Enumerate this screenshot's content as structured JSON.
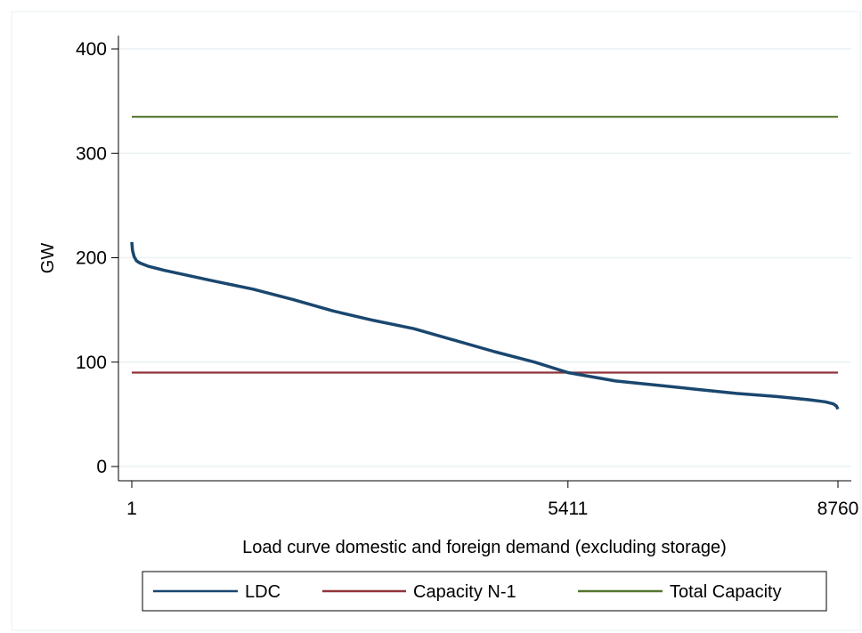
{
  "chart_data": {
    "type": "line",
    "title": "",
    "xlabel": "Load curve domestic and foreign demand (excluding storage)",
    "ylabel": "GW",
    "xlim": [
      1,
      8760
    ],
    "ylim": [
      0,
      400
    ],
    "x_ticks": [
      {
        "value": 1,
        "label": "1"
      },
      {
        "value": 5411,
        "label": "5411"
      },
      {
        "value": 8760,
        "label": "8760"
      }
    ],
    "y_ticks": [
      {
        "value": 0,
        "label": "0"
      },
      {
        "value": 100,
        "label": "100"
      },
      {
        "value": 200,
        "label": "200"
      },
      {
        "value": 300,
        "label": "300"
      },
      {
        "value": 400,
        "label": "400"
      }
    ],
    "grid": "horizontal",
    "legend_position": "bottom",
    "series": [
      {
        "name": "LDC",
        "color": "#1a476f",
        "x": [
          1,
          10,
          30,
          60,
          100,
          200,
          400,
          700,
          1000,
          1500,
          2000,
          2500,
          3000,
          3500,
          4000,
          4500,
          5000,
          5411,
          6000,
          6500,
          7000,
          7500,
          8000,
          8400,
          8600,
          8700,
          8740,
          8760
        ],
        "y": [
          215,
          207,
          201,
          197,
          195,
          192,
          188,
          183,
          178,
          170,
          160,
          149,
          140,
          132,
          121,
          110,
          100,
          90,
          82,
          78,
          74,
          70,
          67,
          64,
          62,
          60,
          58,
          55
        ]
      },
      {
        "name": "Capacity N-1",
        "color": "#90353b",
        "x": [
          1,
          8760
        ],
        "y": [
          90,
          90
        ]
      },
      {
        "name": "Total Capacity",
        "color": "#55752f",
        "x": [
          1,
          8760
        ],
        "y": [
          335,
          335
        ]
      }
    ]
  }
}
